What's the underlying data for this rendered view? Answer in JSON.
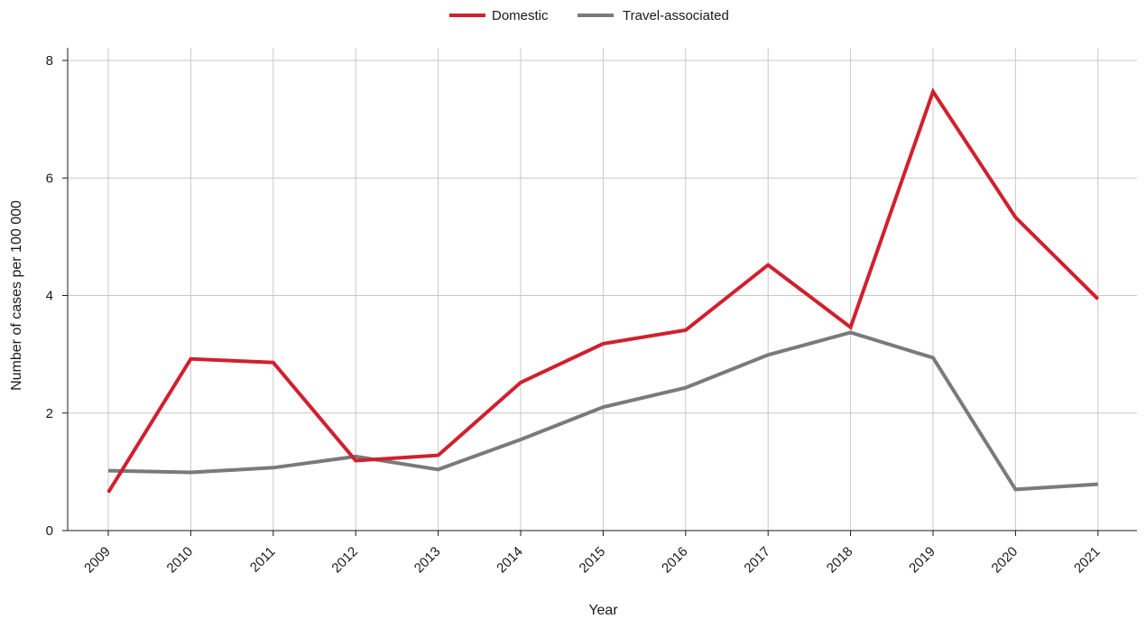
{
  "chart_data": {
    "type": "line",
    "title": "",
    "xlabel": "Year",
    "ylabel": "Number of cases per 100 000",
    "ylim": [
      0,
      8
    ],
    "yticks": [
      0,
      2,
      4,
      6,
      8
    ],
    "grid": true,
    "legend_position": "top-center",
    "categories": [
      "2009",
      "2010",
      "2011",
      "2012",
      "2013",
      "2014",
      "2015",
      "2016",
      "2017",
      "2018",
      "2019",
      "2020",
      "2021"
    ],
    "series": [
      {
        "name": "Domestic",
        "color": "#d0202e",
        "values": [
          0.65,
          2.92,
          2.86,
          1.19,
          1.28,
          2.52,
          3.18,
          3.41,
          4.52,
          3.46,
          7.47,
          5.33,
          3.94
        ]
      },
      {
        "name": "Travel-associated",
        "color": "#7a7a7a",
        "values": [
          1.02,
          0.99,
          1.07,
          1.26,
          1.04,
          1.55,
          2.1,
          2.43,
          2.99,
          3.37,
          2.94,
          0.7,
          0.79
        ]
      }
    ]
  }
}
